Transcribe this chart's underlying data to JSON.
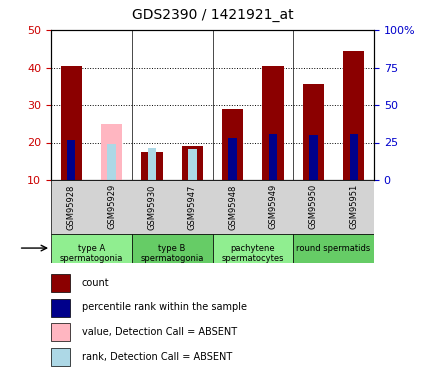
{
  "title": "GDS2390 / 1421921_at",
  "samples": [
    "GSM95928",
    "GSM95929",
    "GSM95930",
    "GSM95947",
    "GSM95948",
    "GSM95949",
    "GSM95950",
    "GSM95951"
  ],
  "count_values": [
    40.5,
    null,
    17.5,
    19.0,
    29.0,
    40.5,
    35.5,
    44.5
  ],
  "count_absent": [
    null,
    25.0,
    null,
    null,
    null,
    null,
    null,
    null
  ],
  "rank_values": [
    27.0,
    null,
    null,
    null,
    28.0,
    31.0,
    30.0,
    31.0
  ],
  "rank_absent": [
    null,
    24.0,
    21.5,
    21.0,
    null,
    null,
    null,
    null
  ],
  "cell_groups": [
    {
      "label": "type A\nspermatogonia",
      "samples": [
        "GSM95928",
        "GSM95929"
      ],
      "color": "#90EE90"
    },
    {
      "label": "type B\nspermatogonia",
      "samples": [
        "GSM95930",
        "GSM95947"
      ],
      "color": "#00CC00"
    },
    {
      "label": "pachytene\nspermatocytes",
      "samples": [
        "GSM95948",
        "GSM95949"
      ],
      "color": "#90EE90"
    },
    {
      "label": "round spermatids",
      "samples": [
        "GSM95950",
        "GSM95951"
      ],
      "color": "#00CC00"
    }
  ],
  "ylim_left": [
    10,
    50
  ],
  "ylim_right": [
    0,
    100
  ],
  "yticks_left": [
    10,
    20,
    30,
    40,
    50
  ],
  "yticks_right": [
    0,
    25,
    50,
    75,
    100
  ],
  "ytick_labels_right": [
    "0",
    "25",
    "50",
    "75",
    "100%"
  ],
  "color_count": "#8B0000",
  "color_count_absent": "#FFB6C1",
  "color_rank": "#00008B",
  "color_rank_absent": "#ADD8E6",
  "bar_width": 0.35,
  "background_color": "#FFFFFF",
  "plot_bg_color": "#FFFFFF",
  "legend_items": [
    {
      "label": "count",
      "color": "#8B0000",
      "marker": "s"
    },
    {
      "label": "percentile rank within the sample",
      "color": "#00008B",
      "marker": "s"
    },
    {
      "label": "value, Detection Call = ABSENT",
      "color": "#FFB6C1",
      "marker": "s"
    },
    {
      "label": "rank, Detection Call = ABSENT",
      "color": "#ADD8E6",
      "marker": "s"
    }
  ],
  "tick_label_color_left": "#CC0000",
  "tick_label_color_right": "#0000CC"
}
